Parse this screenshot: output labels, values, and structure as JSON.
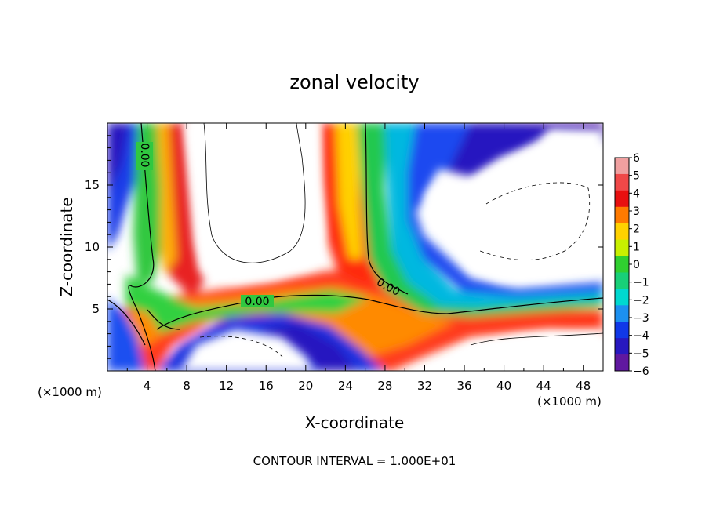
{
  "chart_data": {
    "type": "heatmap",
    "title": "zonal velocity",
    "xlabel": "X-coordinate",
    "ylabel": "Z-coordinate",
    "x_unit_label": "(×1000 m)",
    "y_unit_label": "(×1000 m)",
    "xlim": [
      0,
      50
    ],
    "ylim": [
      0,
      20
    ],
    "x_ticks": [
      4,
      8,
      12,
      16,
      20,
      24,
      28,
      32,
      36,
      40,
      44,
      48
    ],
    "y_ticks": [
      5,
      10,
      15
    ],
    "colorbar": {
      "ticks": [
        6,
        5,
        4,
        3,
        2,
        1,
        0,
        -1,
        -2,
        -3,
        -4,
        -5,
        -6
      ],
      "colors": [
        "#f0a0a0",
        "#f04848",
        "#e81010",
        "#ff7a00",
        "#ffd200",
        "#c8f000",
        "#30d030",
        "#18d078",
        "#00d8d0",
        "#1c90f0",
        "#1038e8",
        "#2818c0",
        "#6018a0"
      ]
    },
    "contour_labels": [
      {
        "text": "0.00",
        "x": 7.6,
        "z": 17.2
      },
      {
        "text": "0.00",
        "x": 15.0,
        "z": 5.6
      },
      {
        "text": "0.00",
        "x": 28.4,
        "z": 6.2
      }
    ],
    "footer": "CONTOUR INTERVAL = 1.000E+01"
  }
}
